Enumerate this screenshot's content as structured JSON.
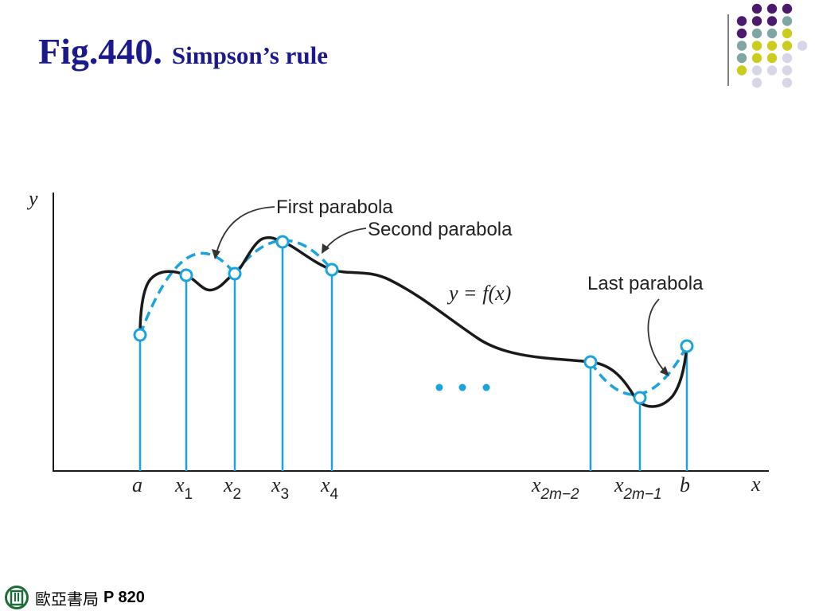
{
  "slide": {
    "title": "Fig.440.",
    "subtitle": "Simpson’s rule"
  },
  "figure": {
    "y_axis_label": "y",
    "x_axis_label": "x",
    "labels": {
      "first_parabola": "First parabola",
      "second_parabola": "Second parabola",
      "last_parabola": "Last parabola",
      "curve_y": "y",
      "curve_equals": "=",
      "curve_f": "f",
      "curve_paren": "(x)"
    },
    "ticks": {
      "a": "a",
      "x1": {
        "base": "x",
        "sub": "1"
      },
      "x2": {
        "base": "x",
        "sub": "2"
      },
      "x3": {
        "base": "x",
        "sub": "3"
      },
      "x4": {
        "base": "x",
        "sub": "4"
      },
      "x2m2": {
        "base": "x",
        "sub": "2m−2"
      },
      "x2m1": {
        "base": "x",
        "sub": "2m−1"
      },
      "b": "b"
    },
    "colors": {
      "curve": "#1a1a1a",
      "parabola": "#1aa3dc",
      "ordinates": "#1aa3dc",
      "axis": "#1a1a1a",
      "arrows": "#333333"
    }
  },
  "decor": {
    "dot_colors": {
      "purple": "#4b1a6e",
      "teal": "#7fa6a4",
      "yellow": "#cccc1f",
      "lavender": "#d6d6e6"
    }
  },
  "footer": {
    "publisher": "歐亞書局",
    "page_ref": "P 820"
  }
}
